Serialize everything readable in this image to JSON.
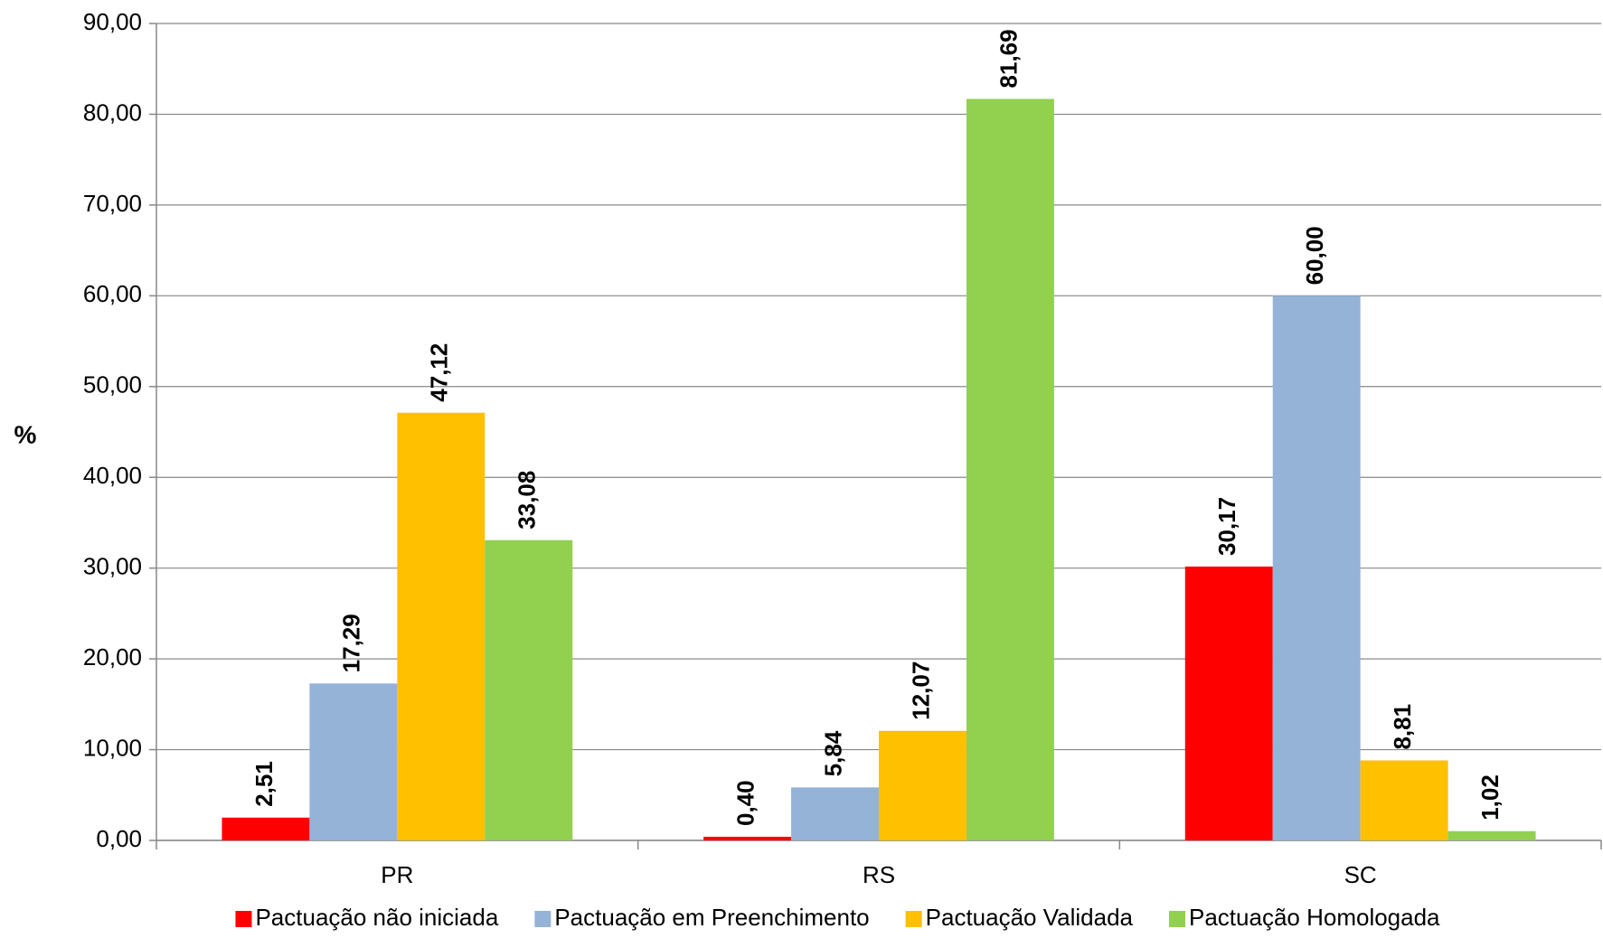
{
  "chart_data": {
    "type": "bar",
    "y_label": "%",
    "categories": [
      "PR",
      "RS",
      "SC"
    ],
    "series": [
      {
        "name": "Pactuação não iniciada",
        "color": "#ff0000",
        "values": [
          2.51,
          0.4,
          30.17
        ],
        "value_labels": [
          "2,51",
          "0,40",
          "30,17"
        ]
      },
      {
        "name": "Pactuação em Preenchimento",
        "color": "#95b3d7",
        "values": [
          17.29,
          5.84,
          60.0
        ],
        "value_labels": [
          "17,29",
          "5,84",
          "60,00"
        ]
      },
      {
        "name": "Pactuação Validada",
        "color": "#ffc000",
        "values": [
          47.12,
          12.07,
          8.81
        ],
        "value_labels": [
          "47,12",
          "12,07",
          "8,81"
        ]
      },
      {
        "name": "Pactuação Homologada",
        "color": "#92d050",
        "values": [
          33.08,
          81.69,
          1.02
        ],
        "value_labels": [
          "33,08",
          "81,69",
          "1,02"
        ]
      }
    ],
    "ylim": [
      0,
      90
    ],
    "yticks": [
      {
        "value": 0,
        "label": "0,00"
      },
      {
        "value": 10,
        "label": "10,00"
      },
      {
        "value": 20,
        "label": "20,00"
      },
      {
        "value": 30,
        "label": "30,00"
      },
      {
        "value": 40,
        "label": "40,00"
      },
      {
        "value": 50,
        "label": "50,00"
      },
      {
        "value": 60,
        "label": "60,00"
      },
      {
        "value": 70,
        "label": "70,00"
      },
      {
        "value": 80,
        "label": "80,00"
      },
      {
        "value": 90,
        "label": "90,00"
      }
    ],
    "grid": true,
    "legend": "bottom"
  }
}
